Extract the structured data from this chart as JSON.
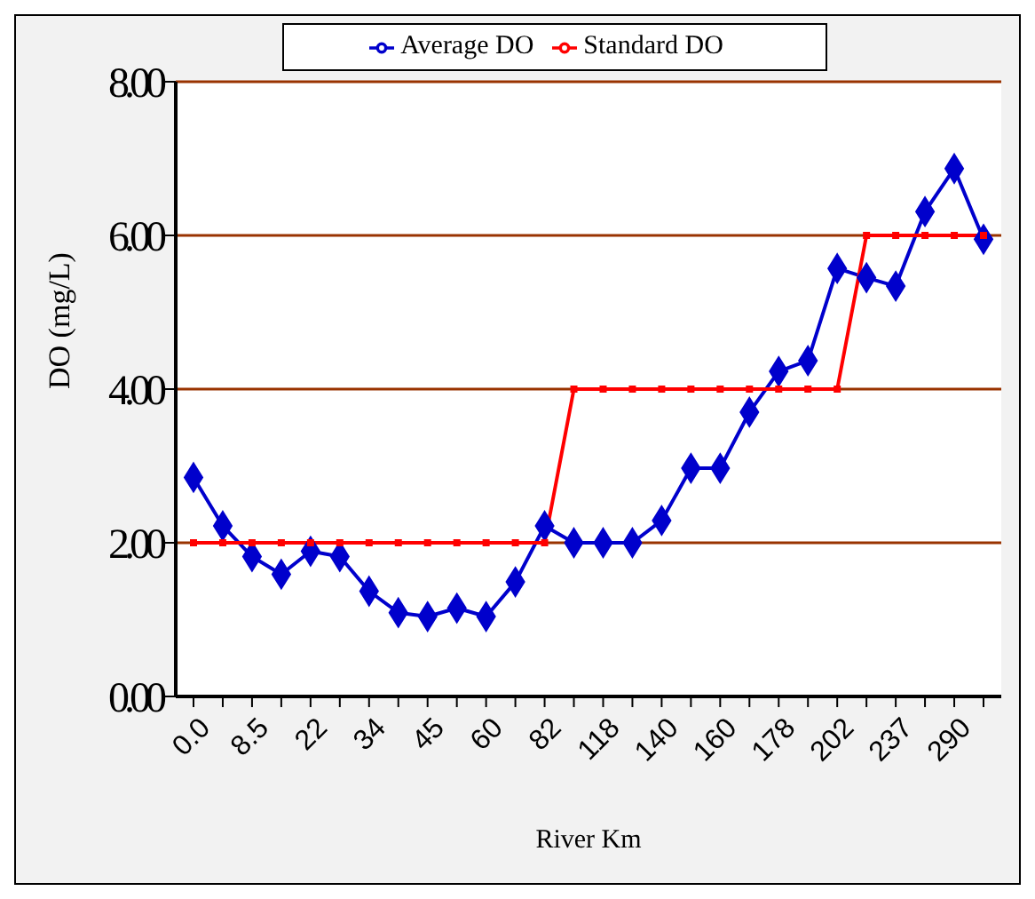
{
  "chart_data": {
    "type": "line",
    "xlabel": "River Km",
    "ylabel": "DO (mg/L)",
    "categories": [
      "0.0",
      null,
      "8.5",
      null,
      "22",
      null,
      "34",
      null,
      "45",
      null,
      "60",
      null,
      "82",
      null,
      "118",
      null,
      "140",
      null,
      "160",
      null,
      "178",
      null,
      "202",
      null,
      "237",
      null,
      "290",
      null
    ],
    "series": [
      {
        "name": "Average DO",
        "color": "#0000cc",
        "marker": "diamond",
        "values": [
          2.85,
          2.22,
          1.82,
          1.59,
          1.89,
          1.82,
          1.37,
          1.09,
          1.04,
          1.15,
          1.04,
          1.49,
          2.22,
          2.0,
          2.0,
          2.0,
          2.29,
          2.97,
          2.97,
          3.7,
          4.23,
          4.37,
          5.57,
          5.45,
          5.34,
          6.31,
          6.87,
          5.95
        ]
      },
      {
        "name": "Standard DO",
        "color": "#ff0000",
        "marker": "square",
        "values": [
          2,
          2,
          2,
          2,
          2,
          2,
          2,
          2,
          2,
          2,
          2,
          2,
          2,
          4,
          4,
          4,
          4,
          4,
          4,
          4,
          4,
          4,
          4,
          6,
          6,
          6,
          6,
          6
        ]
      }
    ],
    "ylim": [
      0,
      8
    ],
    "yticks": [
      {
        "value": 0,
        "label": "0.00"
      },
      {
        "value": 2,
        "label": "2.00"
      },
      {
        "value": 4,
        "label": "4.00"
      },
      {
        "value": 6,
        "label": "6.00"
      },
      {
        "value": 8,
        "label": "8.00"
      }
    ],
    "grid": "y",
    "legend": "top"
  }
}
